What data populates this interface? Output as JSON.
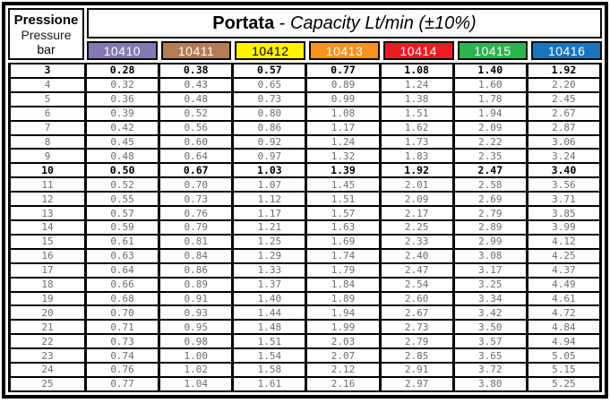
{
  "header": {
    "pressure_label_it": "Pressione",
    "pressure_label_en": "Pressure",
    "unit": "bar",
    "title_portata": "Portata",
    "title_dash": " - ",
    "title_capacity": "Capacity Lt/min (±10%)"
  },
  "colors": {
    "border": "#000000",
    "regular_text": "#6b6c6e",
    "bold_text": "#000000"
  },
  "chart_data": {
    "type": "table",
    "title": "Portata - Capacity Lt/min (±10%)",
    "row_header": [
      "Pressione",
      "Pressure",
      "bar"
    ],
    "categories_label": "bar",
    "categories": [
      "3",
      "4",
      "5",
      "6",
      "7",
      "8",
      "9",
      "10",
      "11",
      "12",
      "13",
      "14",
      "15",
      "16",
      "17",
      "18",
      "19",
      "20",
      "21",
      "22",
      "23",
      "24",
      "25"
    ],
    "bold_categories": [
      "3",
      "10"
    ],
    "series": [
      {
        "name": "10410",
        "color": "#8578b1",
        "text_color": "#ffffff",
        "values": [
          "0.28",
          "0.32",
          "0.36",
          "0.39",
          "0.42",
          "0.45",
          "0.48",
          "0.50",
          "0.52",
          "0.55",
          "0.57",
          "0.59",
          "0.61",
          "0.63",
          "0.64",
          "0.66",
          "0.68",
          "0.70",
          "0.71",
          "0.73",
          "0.74",
          "0.76",
          "0.77"
        ]
      },
      {
        "name": "10411",
        "color": "#b27d55",
        "text_color": "#ffffff",
        "values": [
          "0.38",
          "0.43",
          "0.48",
          "0.52",
          "0.56",
          "0.60",
          "0.64",
          "0.67",
          "0.70",
          "0.73",
          "0.76",
          "0.79",
          "0.81",
          "0.84",
          "0.86",
          "0.89",
          "0.91",
          "0.93",
          "0.95",
          "0.98",
          "1.00",
          "1.02",
          "1.04"
        ]
      },
      {
        "name": "10412",
        "color": "#fff200",
        "text_color": "#000000",
        "values": [
          "0.57",
          "0.65",
          "0.73",
          "0.80",
          "0.86",
          "0.92",
          "0.97",
          "1.03",
          "1.07",
          "1.12",
          "1.17",
          "1.21",
          "1.25",
          "1.29",
          "1.33",
          "1.37",
          "1.40",
          "1.44",
          "1.48",
          "1.51",
          "1.54",
          "1.58",
          "1.61"
        ]
      },
      {
        "name": "10413",
        "color": "#f7941e",
        "text_color": "#ffffff",
        "values": [
          "0.77",
          "0.89",
          "0.99",
          "1.08",
          "1.17",
          "1.24",
          "1.32",
          "1.39",
          "1.45",
          "1.51",
          "1.57",
          "1.63",
          "1.69",
          "1.74",
          "1.79",
          "1.84",
          "1.89",
          "1.94",
          "1.99",
          "2.03",
          "2.07",
          "2.12",
          "2.16"
        ]
      },
      {
        "name": "10414",
        "color": "#ed1c24",
        "text_color": "#ffffff",
        "values": [
          "1.08",
          "1.24",
          "1.38",
          "1.51",
          "1.62",
          "1.73",
          "1.83",
          "1.92",
          "2.01",
          "2.09",
          "2.17",
          "2.25",
          "2.33",
          "2.40",
          "2.47",
          "2.54",
          "2.60",
          "2.67",
          "2.73",
          "2.79",
          "2.85",
          "2.91",
          "2.97"
        ]
      },
      {
        "name": "10415",
        "color": "#2fb34f",
        "text_color": "#ffffff",
        "values": [
          "1.40",
          "1.60",
          "1.78",
          "1.94",
          "2.09",
          "2.22",
          "2.35",
          "2.47",
          "2.58",
          "2.69",
          "2.79",
          "2.89",
          "2.99",
          "3.08",
          "3.17",
          "3.25",
          "3.34",
          "3.42",
          "3.50",
          "3.57",
          "3.65",
          "3.72",
          "3.80"
        ]
      },
      {
        "name": "10416",
        "color": "#1b75bc",
        "text_color": "#ffffff",
        "values": [
          "1.92",
          "2.20",
          "2.45",
          "2.67",
          "2.87",
          "3.06",
          "3.24",
          "3.40",
          "3.56",
          "3.71",
          "3.85",
          "3.99",
          "4.12",
          "4.25",
          "4.37",
          "4.49",
          "4.61",
          "4.72",
          "4.84",
          "4.94",
          "5.05",
          "5.15",
          "5.25"
        ]
      }
    ]
  }
}
